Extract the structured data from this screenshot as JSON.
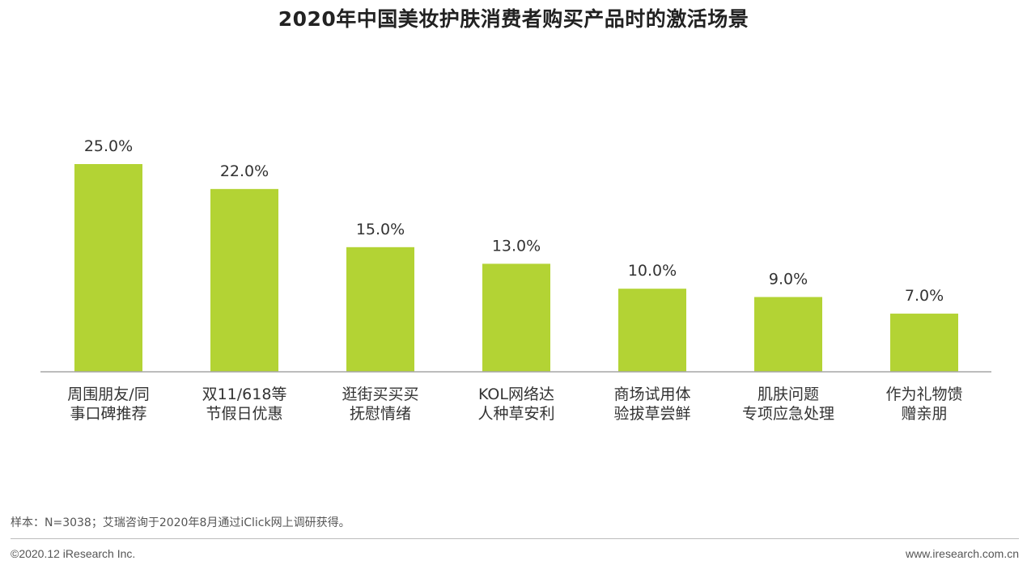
{
  "chart_data": {
    "type": "bar",
    "title": "2020年中国美妆护肤消费者购买产品时的激活场景",
    "categories": [
      [
        "周围朋友/同",
        "事口碑推荐"
      ],
      [
        "双11/618等",
        "节假日优惠"
      ],
      [
        "逛街买买买",
        "抚慰情绪"
      ],
      [
        "KOL网络达",
        "人种草安利"
      ],
      [
        "商场试用体",
        "验拔草尝鲜"
      ],
      [
        "肌肤问题",
        "专项应急处理"
      ],
      [
        "作为礼物馈",
        "赠亲朋"
      ]
    ],
    "values": [
      25.0,
      22.0,
      15.0,
      13.0,
      10.0,
      9.0,
      7.0
    ],
    "value_labels": [
      "25.0%",
      "22.0%",
      "15.0%",
      "13.0%",
      "10.0%",
      "9.0%",
      "7.0%"
    ],
    "unit": "%",
    "ylim": [
      0,
      25
    ],
    "grid": false,
    "bar_color": "#b3d334",
    "axis_color": "#a6a6a6"
  },
  "footer": {
    "note": "样本：N=3038；艾瑞咨询于2020年8月通过iClick网上调研获得。",
    "copyright": "©2020.12 iResearch Inc.",
    "website": "www.iresearch.com.cn"
  }
}
